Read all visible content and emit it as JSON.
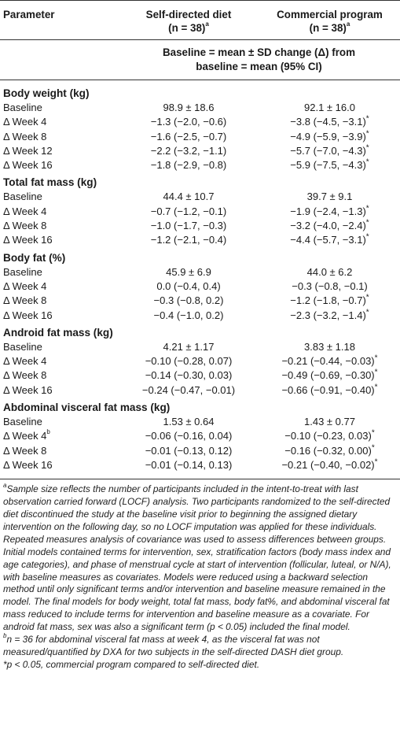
{
  "header": {
    "parameter": "Parameter",
    "group1_name": "Self-directed diet",
    "group1_n": "(n = 38)",
    "group1_sup": "a",
    "group2_name": "Commercial program",
    "group2_n": "(n = 38)",
    "group2_sup": "a",
    "subheader_line1": "Baseline = mean ± SD change (Δ) from",
    "subheader_line2": "baseline = mean (95% CI)"
  },
  "sections": [
    {
      "title": "Body weight (kg)",
      "rows": [
        {
          "label": "Baseline",
          "label_sup": "",
          "v1": "98.9 ± 18.6",
          "v2": "92.1 ± 16.0",
          "v2_star": ""
        },
        {
          "label": "Δ Week 4",
          "label_sup": "",
          "v1": "−1.3 (−2.0, −0.6)",
          "v2": "−3.8 (−4.5, −3.1)",
          "v2_star": "*"
        },
        {
          "label": "Δ Week 8",
          "label_sup": "",
          "v1": "−1.6 (−2.5, −0.7)",
          "v2": "−4.9 (−5.9, −3.9)",
          "v2_star": "*"
        },
        {
          "label": "Δ Week 12",
          "label_sup": "",
          "v1": "−2.2 (−3.2, −1.1)",
          "v2": "−5.7 (−7.0, −4.3)",
          "v2_star": "*"
        },
        {
          "label": "Δ Week 16",
          "label_sup": "",
          "v1": "−1.8 (−2.9, −0.8)",
          "v2": "−5.9 (−7.5, −4.3)",
          "v2_star": "*"
        }
      ]
    },
    {
      "title": "Total fat mass (kg)",
      "rows": [
        {
          "label": "Baseline",
          "label_sup": "",
          "v1": "44.4 ± 10.7",
          "v2": "39.7 ± 9.1",
          "v2_star": ""
        },
        {
          "label": "Δ Week 4",
          "label_sup": "",
          "v1": "−0.7 (−1.2, −0.1)",
          "v2": "−1.9 (−2.4, −1.3)",
          "v2_star": "*"
        },
        {
          "label": "Δ Week 8",
          "label_sup": "",
          "v1": "−1.0 (−1.7, −0.3)",
          "v2": "−3.2 (−4.0, −2.4)",
          "v2_star": "*"
        },
        {
          "label": "Δ Week 16",
          "label_sup": "",
          "v1": "−1.2 (−2.1, −0.4)",
          "v2": "−4.4 (−5.7, −3.1)",
          "v2_star": "*"
        }
      ]
    },
    {
      "title": "Body fat (%)",
      "rows": [
        {
          "label": "Baseline",
          "label_sup": "",
          "v1": "45.9 ± 6.9",
          "v2": "44.0 ± 6.2",
          "v2_star": ""
        },
        {
          "label": "Δ Week 4",
          "label_sup": "",
          "v1": "0.0 (−0.4, 0.4)",
          "v2": "−0.3 (−0.8, −0.1)",
          "v2_star": ""
        },
        {
          "label": "Δ Week 8",
          "label_sup": "",
          "v1": "−0.3 (−0.8, 0.2)",
          "v2": "−1.2 (−1.8, −0.7)",
          "v2_star": "*"
        },
        {
          "label": "Δ Week 16",
          "label_sup": "",
          "v1": "−0.4 (−1.0, 0.2)",
          "v2": "−2.3 (−3.2, −1.4)",
          "v2_star": "*"
        }
      ]
    },
    {
      "title": "Android fat mass (kg)",
      "rows": [
        {
          "label": "Baseline",
          "label_sup": "",
          "v1": "4.21 ± 1.17",
          "v2": "3.83 ± 1.18",
          "v2_star": ""
        },
        {
          "label": "Δ Week 4",
          "label_sup": "",
          "v1": "−0.10 (−0.28, 0.07)",
          "v2": "−0.21 (−0.44, −0.03)",
          "v2_star": "*"
        },
        {
          "label": "Δ Week 8",
          "label_sup": "",
          "v1": "−0.14 (−0.30, 0.03)",
          "v2": "−0.49 (−0.69, −0.30)",
          "v2_star": "*"
        },
        {
          "label": "Δ Week 16",
          "label_sup": "",
          "v1": "−0.24 (−0.47, −0.01)",
          "v2": "−0.66 (−0.91, −0.40)",
          "v2_star": "*"
        }
      ]
    },
    {
      "title": "Abdominal visceral fat mass (kg)",
      "rows": [
        {
          "label": "Baseline",
          "label_sup": "",
          "v1": "1.53 ± 0.64",
          "v2": "1.43 ± 0.77",
          "v2_star": ""
        },
        {
          "label": "Δ Week 4",
          "label_sup": "b",
          "v1": "−0.06 (−0.16, 0.04)",
          "v2": "−0.10 (−0.23, 0.03)",
          "v2_star": "*"
        },
        {
          "label": "Δ Week 8",
          "label_sup": "",
          "v1": "−0.01 (−0.13, 0.12)",
          "v2": "−0.16 (−0.32, 0.00)",
          "v2_star": "*"
        },
        {
          "label": "Δ Week 16",
          "label_sup": "",
          "v1": "−0.01 (−0.14, 0.13)",
          "v2": "−0.21 (−0.40, −0.02)",
          "v2_star": "*"
        }
      ]
    }
  ],
  "footnotes": {
    "a_mark": "a",
    "a_text": "Sample size reflects the number of participants included in the intent-to-treat with last observation carried forward (LOCF) analysis. Two participants randomized to the self-directed diet discontinued the study at the baseline visit prior to beginning the assigned dietary intervention on the following day, so no LOCF imputation was applied for these individuals. Repeated measures analysis of covariance was used to assess differences between groups. Initial models contained terms for intervention, sex, stratification factors (body mass index and age categories), and phase of menstrual cycle at start of intervention (follicular, luteal, or N/A), with baseline measures as covariates. Models were reduced using a backward selection method until only significant terms and/or intervention and baseline measure remained in the model. The final models for body weight, total fat mass, body fat%, and abdominal visceral fat mass reduced to include terms for intervention and baseline measure as a covariate. For android fat mass, sex was also a significant term (p < 0.05) included the final model.",
    "b_mark": "b",
    "b_text": "n = 36 for abdominal visceral fat mass at week 4, as the visceral fat was not measured/quantified by DXA for two subjects in the self-directed DASH diet group.",
    "star_text": "*p < 0.05, commercial program compared to self-directed diet."
  }
}
